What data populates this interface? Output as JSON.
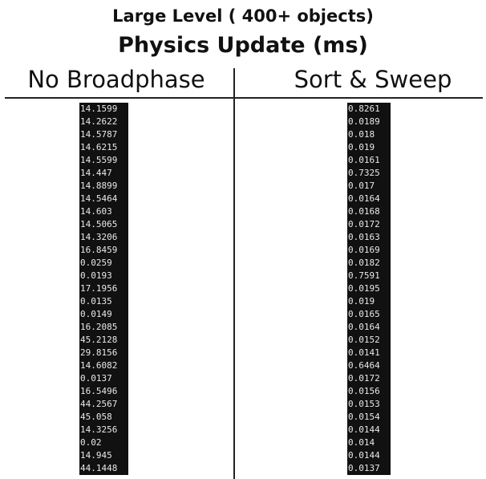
{
  "header": {
    "title": "Large Level ( 400+ objects)",
    "subtitle": "Physics Update (ms)"
  },
  "table": {
    "columns": [
      {
        "name": "No Broadphase",
        "values": [
          14.1599,
          14.2622,
          14.5787,
          14.6215,
          14.5599,
          14.447,
          14.8899,
          14.5464,
          14.603,
          14.5065,
          14.3206,
          16.8459,
          0.0259,
          0.0193,
          17.1956,
          0.0135,
          0.0149,
          16.2085,
          45.2128,
          29.8156,
          14.6082,
          0.0137,
          16.5496,
          44.2567,
          45.058,
          14.3256,
          0.02,
          14.945,
          44.1448
        ]
      },
      {
        "name": "Sort & Sweep",
        "values": [
          0.8261,
          0.0189,
          0.018,
          0.019,
          0.0161,
          0.7325,
          0.017,
          0.0164,
          0.0168,
          0.0172,
          0.0163,
          0.0169,
          0.0182,
          0.7591,
          0.0195,
          0.019,
          0.0165,
          0.0164,
          0.0152,
          0.0141,
          0.6464,
          0.0172,
          0.0156,
          0.0153,
          0.0154,
          0.0144,
          0.014,
          0.0144,
          0.0137
        ]
      }
    ]
  }
}
